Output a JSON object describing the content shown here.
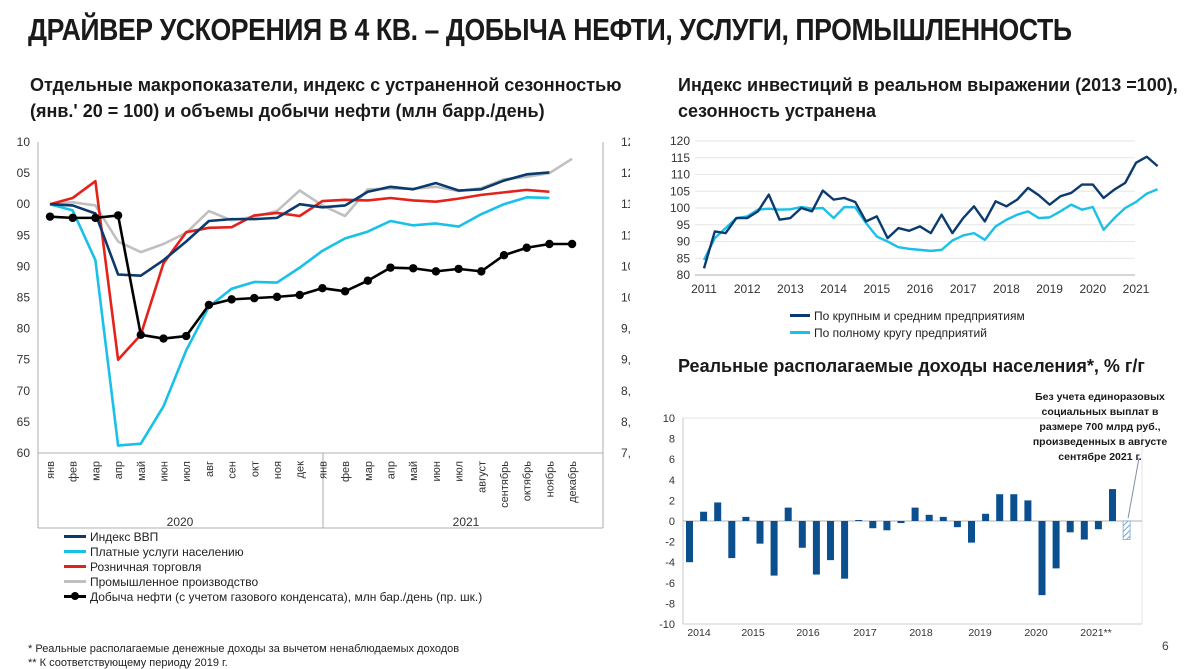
{
  "title": "ДРАЙВЕР УСКОРЕНИЯ В 4 КВ. – ДОБЫЧА НЕФТИ, УСЛУГИ, ПРОМЫШЛЕННОСТЬ",
  "left_title_line1": "Отдельные макропоказатели, индекс с устраненной сезонностью",
  "left_title_line2": "(янв.' 20 = 100) и объемы добычи нефти (млн барр./день)",
  "right_top_title_line1": "Индекс инвестиций в реальном выражении (2013 =100),",
  "right_top_title_line2": "сезонность устранена",
  "right_bottom_title": "Реальные располагаемые доходы населения*, % г/г",
  "note": "Без учета единоразовых социальных выплат в размере 700 млрд руб., произведенных в августе сентябре 2021 г.",
  "footnote1": "* Реальные располагаемые денежные доходы за вычетом ненаблюдаемых доходов",
  "footnote2": "** К соответствующему периоду 2019 г.",
  "page_number": "6",
  "legend_left": [
    "Индекс ВВП",
    "Платные услуги населению",
    "Розничная торговля",
    "Промышленное производство",
    "Добыча нефти (с учетом газового конденсата), млн бар./день (пр. шк.)"
  ],
  "legend_right": [
    "По крупным и средним предприятиям",
    "По полному кругу предприятий"
  ],
  "colors": {
    "gdp": "#0b3a6e",
    "services": "#19c0e8",
    "retail": "#e3221b",
    "industry": "#c0c0c0",
    "oil": "#000000",
    "bars": "#0b4f8f",
    "hatch": "#7aa6d1"
  },
  "chart_data": [
    {
      "type": "line",
      "title": "Отдельные макропоказатели, индекс с устраненной сезонностью (янв.' 20 = 100) и объемы добычи нефти (млн барр./день)",
      "categories": [
        "янв",
        "фев",
        "мар",
        "апр",
        "май",
        "июн",
        "июл",
        "авг",
        "сен",
        "окт",
        "ноя",
        "дек",
        "янв",
        "фев",
        "мар",
        "апр",
        "май",
        "июн",
        "июл",
        "август",
        "сентябрь",
        "октябрь",
        "ноябрь",
        "декабрь"
      ],
      "year_labels": [
        "2020",
        "2021"
      ],
      "y_left_ticks": [
        "10",
        "05",
        "00",
        "95",
        "90",
        "85",
        "80",
        "75",
        "70",
        "65",
        "60"
      ],
      "y_right_ticks": [
        "12,",
        "12,",
        "11,",
        "11,",
        "10,",
        "10,",
        "9,5",
        "9,0",
        "8,5",
        "8,0",
        "7,5"
      ],
      "ylim_left": [
        60,
        110
      ],
      "ylim_right": [
        7.5,
        12.5
      ],
      "series": [
        {
          "name": "Индекс ВВП",
          "axis": "left",
          "values": [
            100,
            99.8,
            98.5,
            88.7,
            88.5,
            91,
            94,
            97.3,
            97.6,
            97.6,
            97.8,
            100,
            99.5,
            99.8,
            102,
            102.8,
            102.4,
            103.4,
            102.2,
            102.4,
            103.8,
            104.8,
            105.1,
            null
          ]
        },
        {
          "name": "Платные услуги населению",
          "axis": "left",
          "values": [
            100,
            99,
            91,
            61.2,
            61.5,
            67.5,
            76.5,
            83.5,
            86.4,
            87.5,
            87.4,
            89.8,
            92.5,
            94.5,
            95.6,
            97.3,
            96.6,
            96.9,
            96.4,
            98.4,
            100,
            101.1,
            101,
            null
          ]
        },
        {
          "name": "Розничная торговля",
          "axis": "left",
          "values": [
            100,
            101,
            103.7,
            75,
            79,
            90.5,
            95.5,
            96.2,
            96.3,
            98.2,
            98.6,
            98.1,
            100.5,
            100.7,
            100.6,
            101,
            100.6,
            100.4,
            100.9,
            101.5,
            101.9,
            102.3,
            102,
            null
          ]
        },
        {
          "name": "Промышленное производство",
          "axis": "left",
          "values": [
            100,
            100.3,
            99.8,
            94,
            92.3,
            93.6,
            95.4,
            98.9,
            97.4,
            98,
            98.9,
            102.2,
            99.8,
            98.1,
            102.4,
            102.5,
            102.5,
            102.8,
            102.1,
            102.6,
            104,
            104.4,
            105,
            107.3
          ]
        },
        {
          "name": "Добыча нефти (с учетом газового конденсата), млн бар./день (пр. шк.)",
          "axis": "right",
          "values": [
            11.3,
            11.28,
            11.28,
            11.32,
            9.4,
            9.34,
            9.38,
            9.88,
            9.97,
            9.99,
            10.01,
            10.04,
            10.15,
            10.1,
            10.27,
            10.48,
            10.47,
            10.42,
            10.46,
            10.42,
            10.68,
            10.8,
            10.86,
            10.86
          ]
        }
      ]
    },
    {
      "type": "line",
      "title": "Индекс инвестиций в реальном выражении (2013 =100), сезонность устранена",
      "x_start": 2011,
      "x_step": 0.25,
      "x_ticks": [
        "2011",
        "2012",
        "2013",
        "2014",
        "2015",
        "2016",
        "2017",
        "2018",
        "2019",
        "2020",
        "2021"
      ],
      "y_ticks": [
        "120",
        "115",
        "110",
        "105",
        "100",
        "95",
        "90",
        "85",
        "80"
      ],
      "ylim": [
        80,
        120
      ],
      "series": [
        {
          "name": "По крупным и средним предприятиям",
          "values": [
            82,
            93,
            92.5,
            97,
            97,
            99,
            104,
            96.5,
            97,
            100,
            99,
            105.2,
            102.5,
            103,
            101.8,
            96,
            97.5,
            91,
            94,
            93.2,
            94.5,
            92.5,
            98,
            92.5,
            97,
            100.5,
            96,
            102,
            100.5,
            102.5,
            106,
            103.8,
            101,
            103.5,
            104.5,
            107,
            107,
            103,
            105.5,
            107.5,
            113.5,
            115.3,
            112.5
          ]
        },
        {
          "name": "По полному кругу предприятий",
          "values": [
            84.5,
            91,
            94,
            97,
            97.5,
            99.5,
            99.8,
            99.5,
            99.6,
            100.3,
            99.8,
            100,
            97,
            100.3,
            100.2,
            95.5,
            91.5,
            90,
            88.3,
            87.8,
            87.5,
            87.2,
            87.5,
            90.3,
            91.8,
            92.5,
            90.5,
            94.5,
            96.5,
            98,
            99,
            97,
            97.2,
            99,
            101,
            99.5,
            100.3,
            93.5,
            97,
            100,
            101.8,
            104.3,
            105.6
          ]
        }
      ]
    },
    {
      "type": "bar",
      "title": "Реальные располагаемые доходы населения*, % г/г",
      "x_ticks": [
        "2014",
        "2015",
        "2016",
        "2017",
        "2018",
        "2019",
        "2020",
        "2021**"
      ],
      "y_ticks": [
        "10",
        "8",
        "6",
        "4",
        "2",
        "0",
        "-2",
        "-4",
        "-6",
        "-8",
        "-10"
      ],
      "ylim": [
        -10,
        10
      ],
      "values": [
        -4,
        0.9,
        1.8,
        -3.6,
        0.4,
        -2.2,
        -5.3,
        1.3,
        -2.6,
        -5.2,
        -3.8,
        -5.6,
        0.1,
        -0.7,
        -0.9,
        -0.2,
        1.3,
        0.6,
        0.4,
        -0.6,
        -2.1,
        0.7,
        2.6,
        2.6,
        2,
        -7.2,
        -4.6,
        -1.1,
        -1.8,
        -0.8,
        3.1
      ],
      "hatched_value": -1.8
    }
  ]
}
